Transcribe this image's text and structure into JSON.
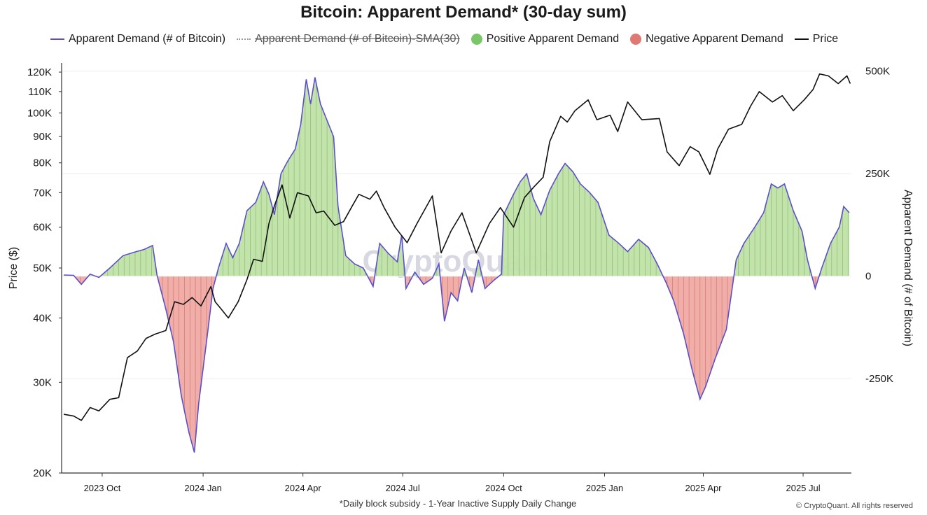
{
  "chart_data": {
    "type": "area",
    "title": "Bitcoin: Apparent Demand* (30-day sum)",
    "legend": [
      {
        "label": "Apparent Demand (# of Bitcoin)",
        "kind": "line",
        "color": "#5b4fcf",
        "struck": false
      },
      {
        "label": "Apparent Demand (# of Bitcoin)-SMA(30)",
        "kind": "dotted",
        "color": "#999999",
        "struck": true
      },
      {
        "label": "Positive Apparent Demand",
        "kind": "dot",
        "color": "#7cc66a",
        "struck": false
      },
      {
        "label": "Negative Apparent Demand",
        "kind": "dot",
        "color": "#df7a72",
        "struck": false
      },
      {
        "label": "Price",
        "kind": "line",
        "color": "#111111",
        "struck": false
      }
    ],
    "left_axis": {
      "label": "Price ($)",
      "scale": "log",
      "range": [
        20000,
        125000
      ],
      "ticks": [
        {
          "value": 20000,
          "label": "20K"
        },
        {
          "value": 30000,
          "label": "30K"
        },
        {
          "value": 40000,
          "label": "40K"
        },
        {
          "value": 50000,
          "label": "50K"
        },
        {
          "value": 60000,
          "label": "60K"
        },
        {
          "value": 70000,
          "label": "70K"
        },
        {
          "value": 80000,
          "label": "80K"
        },
        {
          "value": 90000,
          "label": "90K"
        },
        {
          "value": 100000,
          "label": "100K"
        },
        {
          "value": 110000,
          "label": "110K"
        },
        {
          "value": 120000,
          "label": "120K"
        }
      ]
    },
    "right_axis": {
      "label": "Apparent Demand (# of Bitcoin)",
      "scale": "linear",
      "range": [
        -480000,
        520000
      ],
      "ticks": [
        {
          "value": 500000,
          "label": "500K"
        },
        {
          "value": 250000,
          "label": "250K"
        },
        {
          "value": 0,
          "label": "0"
        },
        {
          "value": -250000,
          "label": "-250K"
        }
      ]
    },
    "x_axis": {
      "range": [
        "2023-08-25",
        "2025-08-14"
      ],
      "ticks": [
        {
          "date": "2023-10-01",
          "label": "2023 Oct"
        },
        {
          "date": "2024-01-01",
          "label": "2024 Jan"
        },
        {
          "date": "2024-04-01",
          "label": "2024 Apr"
        },
        {
          "date": "2024-07-01",
          "label": "2024 Jul"
        },
        {
          "date": "2024-10-01",
          "label": "2024 Oct"
        },
        {
          "date": "2025-01-01",
          "label": "2025 Jan"
        },
        {
          "date": "2025-04-01",
          "label": "2025 Apr"
        },
        {
          "date": "2025-07-01",
          "label": "2025 Jul"
        }
      ]
    },
    "gridlines": true,
    "series": [
      {
        "name": "Apparent Demand (# of Bitcoin)",
        "axis": "right",
        "points": [
          [
            "2023-08-27",
            3000
          ],
          [
            "2023-09-05",
            2000
          ],
          [
            "2023-09-12",
            -20000
          ],
          [
            "2023-09-20",
            5000
          ],
          [
            "2023-09-28",
            -3000
          ],
          [
            "2023-10-08",
            20000
          ],
          [
            "2023-10-20",
            50000
          ],
          [
            "2023-11-01",
            60000
          ],
          [
            "2023-11-08",
            65000
          ],
          [
            "2023-11-16",
            75000
          ],
          [
            "2023-11-20",
            2000
          ],
          [
            "2023-11-28",
            -80000
          ],
          [
            "2023-12-05",
            -160000
          ],
          [
            "2023-12-12",
            -290000
          ],
          [
            "2023-12-19",
            -380000
          ],
          [
            "2023-12-24",
            -430000
          ],
          [
            "2023-12-28",
            -310000
          ],
          [
            "2024-01-05",
            -140000
          ],
          [
            "2024-01-10",
            -30000
          ],
          [
            "2024-01-15",
            20000
          ],
          [
            "2024-01-22",
            80000
          ],
          [
            "2024-01-28",
            45000
          ],
          [
            "2024-02-03",
            80000
          ],
          [
            "2024-02-10",
            160000
          ],
          [
            "2024-02-18",
            180000
          ],
          [
            "2024-02-25",
            230000
          ],
          [
            "2024-03-01",
            200000
          ],
          [
            "2024-03-06",
            150000
          ],
          [
            "2024-03-12",
            250000
          ],
          [
            "2024-03-18",
            280000
          ],
          [
            "2024-03-25",
            310000
          ],
          [
            "2024-03-30",
            370000
          ],
          [
            "2024-04-04",
            480000
          ],
          [
            "2024-04-08",
            420000
          ],
          [
            "2024-04-12",
            485000
          ],
          [
            "2024-04-17",
            420000
          ],
          [
            "2024-04-23",
            380000
          ],
          [
            "2024-04-29",
            340000
          ],
          [
            "2024-05-03",
            170000
          ],
          [
            "2024-05-10",
            50000
          ],
          [
            "2024-05-18",
            30000
          ],
          [
            "2024-05-26",
            20000
          ],
          [
            "2024-06-04",
            -25000
          ],
          [
            "2024-06-10",
            80000
          ],
          [
            "2024-06-18",
            55000
          ],
          [
            "2024-06-26",
            35000
          ],
          [
            "2024-06-30",
            100000
          ],
          [
            "2024-07-04",
            -30000
          ],
          [
            "2024-07-12",
            10000
          ],
          [
            "2024-07-20",
            -20000
          ],
          [
            "2024-07-28",
            -5000
          ],
          [
            "2024-08-03",
            30000
          ],
          [
            "2024-08-08",
            -110000
          ],
          [
            "2024-08-14",
            -40000
          ],
          [
            "2024-08-20",
            -60000
          ],
          [
            "2024-08-26",
            20000
          ],
          [
            "2024-09-02",
            -40000
          ],
          [
            "2024-09-08",
            40000
          ],
          [
            "2024-09-14",
            -30000
          ],
          [
            "2024-09-22",
            -10000
          ],
          [
            "2024-09-29",
            5000
          ],
          [
            "2024-10-01",
            150000
          ],
          [
            "2024-10-10",
            200000
          ],
          [
            "2024-10-16",
            230000
          ],
          [
            "2024-10-22",
            250000
          ],
          [
            "2024-10-28",
            190000
          ],
          [
            "2024-11-04",
            150000
          ],
          [
            "2024-11-12",
            210000
          ],
          [
            "2024-11-20",
            250000
          ],
          [
            "2024-11-26",
            275000
          ],
          [
            "2024-12-03",
            255000
          ],
          [
            "2024-12-10",
            225000
          ],
          [
            "2024-12-18",
            205000
          ],
          [
            "2024-12-26",
            180000
          ],
          [
            "2025-01-05",
            100000
          ],
          [
            "2025-01-14",
            80000
          ],
          [
            "2025-01-22",
            60000
          ],
          [
            "2025-02-01",
            90000
          ],
          [
            "2025-02-10",
            70000
          ],
          [
            "2025-02-18",
            30000
          ],
          [
            "2025-02-26",
            -15000
          ],
          [
            "2025-03-05",
            -60000
          ],
          [
            "2025-03-14",
            -140000
          ],
          [
            "2025-03-22",
            -230000
          ],
          [
            "2025-03-29",
            -300000
          ],
          [
            "2025-04-03",
            -270000
          ],
          [
            "2025-04-12",
            -200000
          ],
          [
            "2025-04-22",
            -130000
          ],
          [
            "2025-05-01",
            40000
          ],
          [
            "2025-05-08",
            80000
          ],
          [
            "2025-05-18",
            120000
          ],
          [
            "2025-05-26",
            155000
          ],
          [
            "2025-06-02",
            225000
          ],
          [
            "2025-06-08",
            215000
          ],
          [
            "2025-06-14",
            225000
          ],
          [
            "2025-06-22",
            160000
          ],
          [
            "2025-06-30",
            110000
          ],
          [
            "2025-07-05",
            40000
          ],
          [
            "2025-07-12",
            -30000
          ],
          [
            "2025-07-18",
            20000
          ],
          [
            "2025-07-26",
            80000
          ],
          [
            "2025-08-03",
            120000
          ],
          [
            "2025-08-07",
            170000
          ],
          [
            "2025-08-12",
            155000
          ]
        ]
      },
      {
        "name": "Price",
        "axis": "left",
        "points": [
          [
            "2023-08-27",
            26000
          ],
          [
            "2023-09-05",
            25800
          ],
          [
            "2023-09-12",
            25300
          ],
          [
            "2023-09-20",
            26800
          ],
          [
            "2023-09-28",
            26400
          ],
          [
            "2023-10-08",
            27800
          ],
          [
            "2023-10-16",
            28000
          ],
          [
            "2023-10-24",
            33500
          ],
          [
            "2023-11-02",
            34500
          ],
          [
            "2023-11-10",
            36500
          ],
          [
            "2023-11-18",
            37200
          ],
          [
            "2023-11-28",
            37800
          ],
          [
            "2023-12-06",
            43000
          ],
          [
            "2023-12-14",
            42500
          ],
          [
            "2023-12-22",
            43800
          ],
          [
            "2023-12-30",
            42200
          ],
          [
            "2024-01-08",
            46000
          ],
          [
            "2024-01-12",
            43000
          ],
          [
            "2024-01-18",
            41500
          ],
          [
            "2024-01-24",
            40000
          ],
          [
            "2024-02-02",
            43000
          ],
          [
            "2024-02-10",
            47500
          ],
          [
            "2024-02-16",
            52000
          ],
          [
            "2024-02-24",
            51500
          ],
          [
            "2024-03-01",
            61000
          ],
          [
            "2024-03-06",
            66000
          ],
          [
            "2024-03-13",
            72500
          ],
          [
            "2024-03-20",
            62500
          ],
          [
            "2024-03-27",
            70000
          ],
          [
            "2024-04-06",
            69000
          ],
          [
            "2024-04-13",
            64000
          ],
          [
            "2024-04-20",
            64500
          ],
          [
            "2024-04-30",
            60500
          ],
          [
            "2024-05-08",
            61500
          ],
          [
            "2024-05-16",
            66000
          ],
          [
            "2024-05-22",
            69500
          ],
          [
            "2024-06-01",
            68000
          ],
          [
            "2024-06-07",
            70500
          ],
          [
            "2024-06-14",
            65500
          ],
          [
            "2024-06-24",
            60000
          ],
          [
            "2024-07-05",
            56000
          ],
          [
            "2024-07-14",
            61000
          ],
          [
            "2024-07-28",
            69000
          ],
          [
            "2024-08-05",
            53500
          ],
          [
            "2024-08-14",
            59000
          ],
          [
            "2024-08-24",
            64000
          ],
          [
            "2024-09-06",
            53500
          ],
          [
            "2024-09-18",
            61000
          ],
          [
            "2024-09-28",
            65500
          ],
          [
            "2024-10-10",
            60000
          ],
          [
            "2024-10-20",
            68500
          ],
          [
            "2024-10-29",
            72000
          ],
          [
            "2024-11-06",
            75000
          ],
          [
            "2024-11-12",
            88000
          ],
          [
            "2024-11-22",
            98500
          ],
          [
            "2024-11-28",
            96000
          ],
          [
            "2024-12-05",
            101000
          ],
          [
            "2024-12-17",
            106000
          ],
          [
            "2024-12-25",
            97000
          ],
          [
            "2025-01-06",
            99000
          ],
          [
            "2025-01-13",
            92000
          ],
          [
            "2025-01-22",
            105000
          ],
          [
            "2025-02-04",
            97000
          ],
          [
            "2025-02-20",
            97500
          ],
          [
            "2025-02-27",
            84000
          ],
          [
            "2025-03-10",
            79000
          ],
          [
            "2025-03-20",
            86000
          ],
          [
            "2025-03-28",
            84000
          ],
          [
            "2025-04-07",
            76000
          ],
          [
            "2025-04-14",
            85000
          ],
          [
            "2025-04-24",
            93000
          ],
          [
            "2025-05-06",
            95000
          ],
          [
            "2025-05-14",
            103000
          ],
          [
            "2025-05-22",
            110000
          ],
          [
            "2025-06-03",
            105000
          ],
          [
            "2025-06-12",
            108000
          ],
          [
            "2025-06-22",
            101000
          ],
          [
            "2025-07-02",
            106000
          ],
          [
            "2025-07-10",
            111000
          ],
          [
            "2025-07-16",
            119000
          ],
          [
            "2025-07-24",
            118000
          ],
          [
            "2025-08-02",
            114000
          ],
          [
            "2025-08-10",
            118000
          ],
          [
            "2025-08-13",
            114000
          ]
        ]
      }
    ],
    "footnote": "*Daily block subsidy - 1-Year Inactive Supply Daily Change",
    "watermark": "CryptoQuant",
    "copyright": "© CryptoQuant. All rights reserved"
  }
}
